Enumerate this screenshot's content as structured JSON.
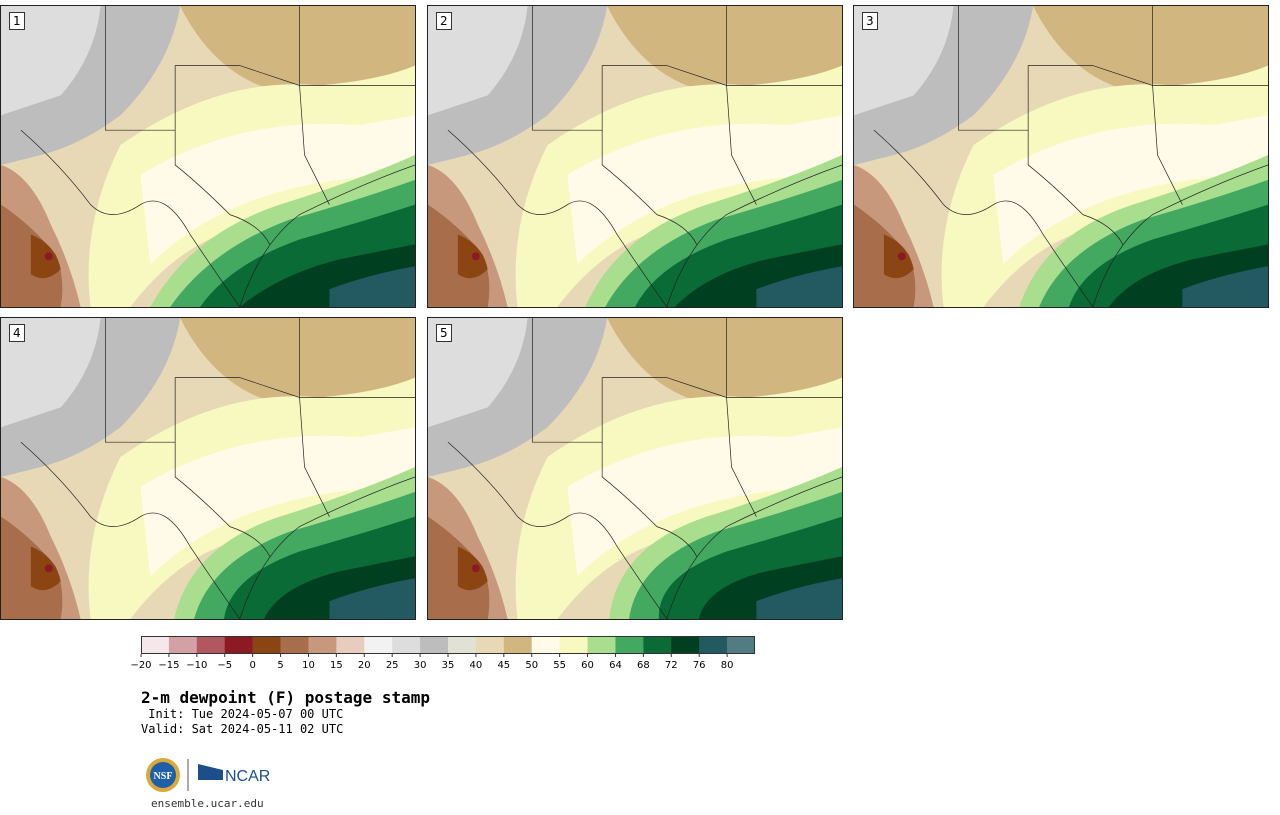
{
  "figure": {
    "title": "2-m dewpoint (F) postage stamp",
    "init": " Init: Tue 2024-05-07 00 UTC",
    "valid": "Valid: Sat 2024-05-11 02 UTC",
    "site": "ensemble.ucar.edu",
    "logos": [
      "NSF",
      "NCAR"
    ]
  },
  "panels": [
    {
      "label": "1"
    },
    {
      "label": "2"
    },
    {
      "label": "3"
    },
    {
      "label": "4"
    },
    {
      "label": "5"
    }
  ],
  "colorbar": {
    "ticks": [
      "−20",
      "−15",
      "−10",
      "−5",
      "0",
      "5",
      "10",
      "15",
      "20",
      "25",
      "30",
      "35",
      "40",
      "45",
      "50",
      "55",
      "60",
      "64",
      "68",
      "72",
      "76",
      "80"
    ],
    "colors": [
      "#f6e8ea",
      "#d3a0a6",
      "#b0575f",
      "#8b1a24",
      "#8b4513",
      "#a86e4b",
      "#c7987c",
      "#e7cdbd",
      "#f2f2f2",
      "#dddddd",
      "#bdbdbd",
      "#e1e1d5",
      "#e7d9b5",
      "#d2b680",
      "#fffbe8",
      "#f7f9c0",
      "#a9de8f",
      "#43a960",
      "#0a6b36",
      "#013f21",
      "#235960",
      "#507c82"
    ]
  }
}
